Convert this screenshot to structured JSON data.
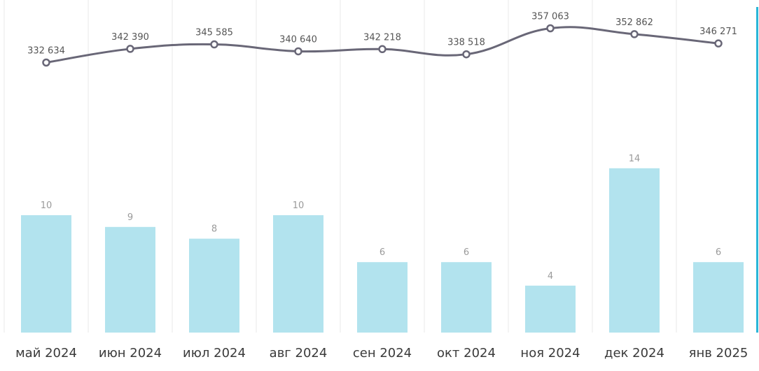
{
  "chart_data": {
    "type": "bar",
    "categories": [
      "май 2024",
      "июн 2024",
      "июл 2024",
      "авг 2024",
      "сен 2024",
      "окт 2024",
      "ноя 2024",
      "дек 2024",
      "янв 2025"
    ],
    "series": [
      {
        "type": "bar",
        "values": [
          10,
          9,
          8,
          10,
          6,
          6,
          4,
          14,
          6
        ],
        "labels": [
          "10",
          "9",
          "8",
          "10",
          "6",
          "6",
          "4",
          "14",
          "6"
        ]
      },
      {
        "type": "line",
        "values": [
          332634,
          342390,
          345585,
          340640,
          342218,
          338518,
          357063,
          352862,
          346271
        ],
        "labels": [
          "332 634",
          "342 390",
          "345 585",
          "340 640",
          "342 218",
          "338 518",
          "357 063",
          "352 862",
          "346 271"
        ]
      }
    ],
    "grid": "vertical",
    "colors": {
      "bar": "#b2e3ee",
      "line": "#696777",
      "grid": "#e8e8e8",
      "accent": "#29b6d8"
    }
  }
}
